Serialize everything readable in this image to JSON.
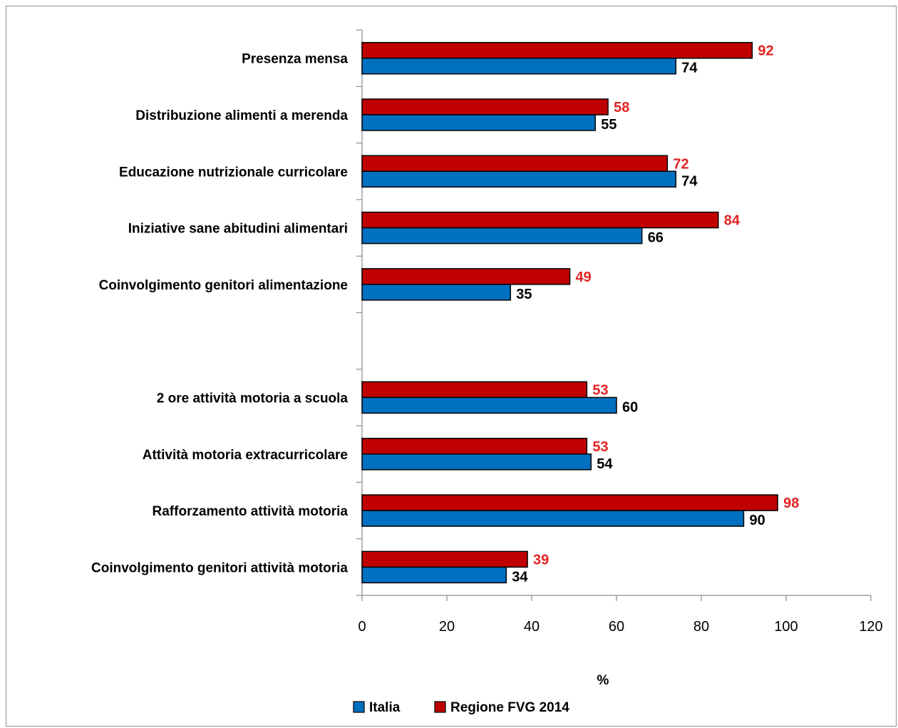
{
  "chart_data": {
    "type": "bar",
    "orientation": "horizontal",
    "xlabel": "%",
    "xlim": [
      0,
      120
    ],
    "xticks": [
      "0",
      "20",
      "40",
      "60",
      "80",
      "100",
      "120"
    ],
    "grid": false,
    "legend_position": "bottom",
    "categories": [
      "Presenza mensa",
      "Distribuzione alimenti a merenda",
      "Educazione nutrizionale curricolare",
      "Iniziative sane abitudini alimentari",
      "Coinvolgimento genitori alimentazione",
      "",
      "2 ore attività motoria a scuola",
      "Attività motoria extracurricolare",
      "Rafforzamento attività motoria",
      "Coinvolgimento genitori attività motoria"
    ],
    "series": [
      {
        "name": "Italia",
        "color": "#0070C0",
        "label_color": "#000000",
        "values": [
          74,
          55,
          74,
          66,
          35,
          null,
          60,
          54,
          90,
          34
        ]
      },
      {
        "name": "Regione FVG 2014",
        "color": "#C00000",
        "label_color": "#E32222",
        "values": [
          92,
          58,
          72,
          84,
          49,
          null,
          53,
          53,
          98,
          39
        ]
      }
    ]
  }
}
